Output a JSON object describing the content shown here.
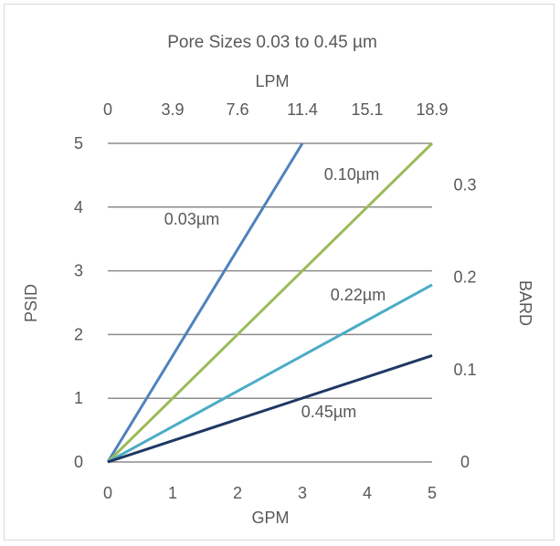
{
  "chart_data": {
    "type": "line",
    "title": "Pore Sizes 0.03 to 0.45 µm",
    "xlabel": "GPM",
    "ylabel": "PSID",
    "x2label": "LPM",
    "y2label": "BARD",
    "xlim": [
      0,
      5
    ],
    "ylim": [
      0,
      5
    ],
    "y2lim": [
      0,
      0.345
    ],
    "x_ticks": [
      "0",
      "1",
      "2",
      "3",
      "4",
      "5"
    ],
    "y_ticks": [
      "0",
      "1",
      "2",
      "3",
      "4",
      "5"
    ],
    "x2_ticks": [
      "0",
      "3.9",
      "7.6",
      "11.4",
      "15.1",
      "18.9"
    ],
    "y2_ticks": [
      "0",
      "0.1",
      "0.2",
      "0.3"
    ],
    "grid": "horizontal",
    "series": [
      {
        "name": "0.03µm",
        "color": "#4f81bd",
        "x": [
          0,
          3.0
        ],
        "y": [
          0,
          5.0
        ]
      },
      {
        "name": "0.10µm",
        "color": "#9bbb59",
        "x": [
          0,
          5
        ],
        "y": [
          0,
          5.0
        ]
      },
      {
        "name": "0.22µm",
        "color": "#4bacc6",
        "x": [
          0,
          5
        ],
        "y": [
          0,
          2.78
        ]
      },
      {
        "name": "0.45µm",
        "color": "#1f3864",
        "x": [
          0,
          5
        ],
        "y": [
          0,
          1.67
        ]
      }
    ]
  }
}
